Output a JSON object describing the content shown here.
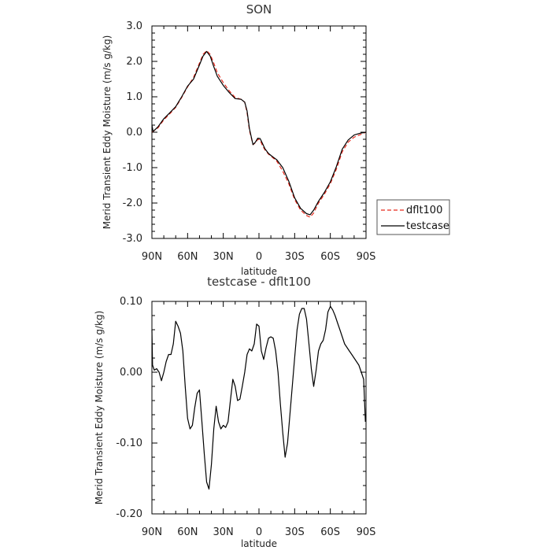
{
  "chart_data": [
    {
      "type": "line",
      "title": "SON",
      "xlabel": "latitude",
      "ylabel": "Merid Transient Eddy Moisture (m/s g/kg)",
      "xlim": [
        90,
        -90
      ],
      "ylim": [
        -3.0,
        3.0
      ],
      "x_tick_values": [
        90,
        60,
        30,
        0,
        -30,
        -60,
        -90
      ],
      "x_tick_labels": [
        "90N",
        "60N",
        "30N",
        "0",
        "30S",
        "60S",
        "90S"
      ],
      "y_tick_values": [
        -3.0,
        -2.0,
        -1.0,
        0.0,
        1.0,
        2.0,
        3.0
      ],
      "y_tick_labels": [
        "-3.0",
        "-2.0",
        "-1.0",
        "0.0",
        "1.0",
        "2.0",
        "3.0"
      ],
      "grid": false,
      "legend_position": "outside-right",
      "series": [
        {
          "name": "dflt100",
          "color": "#e8291c",
          "dash": "dashed",
          "x": [
            90,
            85,
            80,
            75,
            70,
            65,
            60,
            55,
            50,
            47,
            44,
            41,
            38,
            35,
            30,
            25,
            20,
            15,
            12,
            10,
            8,
            5,
            3,
            1,
            -1,
            -3,
            -5,
            -8,
            -11,
            -15,
            -20,
            -25,
            -30,
            -35,
            -40,
            -43,
            -46,
            -50,
            -55,
            -60,
            -65,
            -70,
            -75,
            -80,
            -85,
            -90
          ],
          "y": [
            0.0,
            0.12,
            0.35,
            0.52,
            0.7,
            0.98,
            1.28,
            1.55,
            1.95,
            2.2,
            2.3,
            2.2,
            1.95,
            1.68,
            1.4,
            1.17,
            0.98,
            0.93,
            0.85,
            0.55,
            0.05,
            -0.35,
            -0.3,
            -0.2,
            -0.22,
            -0.38,
            -0.5,
            -0.62,
            -0.7,
            -0.82,
            -1.1,
            -1.45,
            -1.9,
            -2.2,
            -2.35,
            -2.4,
            -2.28,
            -2.0,
            -1.75,
            -1.45,
            -1.05,
            -0.55,
            -0.28,
            -0.14,
            -0.07,
            0.0
          ]
        },
        {
          "name": "testcase",
          "color": "#000000",
          "dash": "solid",
          "x": [
            90,
            89,
            85,
            80,
            75,
            70,
            65,
            60,
            55,
            50,
            47,
            44,
            41,
            38,
            35,
            30,
            25,
            20,
            15,
            12,
            10,
            8,
            5,
            3,
            1,
            -1,
            -3,
            -5,
            -8,
            -11,
            -15,
            -20,
            -25,
            -30,
            -35,
            -40,
            -43,
            -46,
            -50,
            -55,
            -60,
            -65,
            -70,
            -75,
            -80,
            -85,
            -90
          ],
          "y": [
            0.2,
            0.02,
            0.15,
            0.38,
            0.55,
            0.72,
            1.0,
            1.3,
            1.5,
            1.9,
            2.15,
            2.28,
            2.15,
            1.85,
            1.58,
            1.32,
            1.12,
            0.95,
            0.93,
            0.85,
            0.6,
            0.1,
            -0.35,
            -0.28,
            -0.17,
            -0.18,
            -0.32,
            -0.47,
            -0.6,
            -0.68,
            -0.78,
            -1.0,
            -1.38,
            -1.85,
            -2.15,
            -2.3,
            -2.33,
            -2.2,
            -1.95,
            -1.7,
            -1.4,
            -0.98,
            -0.48,
            -0.22,
            -0.08,
            -0.03,
            0.0
          ]
        }
      ]
    },
    {
      "type": "line",
      "title": "testcase - dflt100",
      "xlabel": "latitude",
      "ylabel": "Merid Transient Eddy Moisture (m/s g/kg)",
      "xlim": [
        90,
        -90
      ],
      "ylim": [
        -0.2,
        0.1
      ],
      "x_tick_values": [
        90,
        60,
        30,
        0,
        -30,
        -60,
        -90
      ],
      "x_tick_labels": [
        "90N",
        "60N",
        "30N",
        "0",
        "30S",
        "60S",
        "90S"
      ],
      "y_tick_values": [
        -0.2,
        -0.1,
        0.0,
        0.1
      ],
      "y_tick_labels": [
        "-0.20",
        "-0.10",
        "0.00",
        "0.10"
      ],
      "grid": false,
      "series": [
        {
          "color": "#000000",
          "dash": "solid",
          "x": [
            90,
            89.5,
            88,
            86,
            84,
            82,
            80,
            78,
            76,
            74,
            72,
            70,
            68,
            66,
            64,
            62,
            60,
            58,
            56,
            54,
            52,
            50,
            48,
            46,
            44,
            42,
            40,
            38,
            36,
            34,
            32,
            30,
            28,
            26,
            24,
            22,
            20,
            18,
            16,
            14,
            12,
            10,
            8,
            6,
            4,
            2,
            0,
            -2,
            -4,
            -6,
            -8,
            -10,
            -12,
            -14,
            -16,
            -18,
            -20,
            -22,
            -24,
            -26,
            -28,
            -30,
            -32,
            -34,
            -36,
            -38,
            -40,
            -42,
            -44,
            -46,
            -48,
            -50,
            -52,
            -54,
            -56,
            -58,
            -60,
            -62,
            -64,
            -66,
            -68,
            -70,
            -72,
            -74,
            -76,
            -78,
            -80,
            -82,
            -84,
            -86,
            -88,
            -89.5
          ],
          "y": [
            0.06,
            0.01,
            0.003,
            0.005,
            0.0,
            -0.012,
            0.0,
            0.015,
            0.025,
            0.025,
            0.04,
            0.072,
            0.065,
            0.055,
            0.03,
            -0.02,
            -0.065,
            -0.08,
            -0.075,
            -0.05,
            -0.03,
            -0.025,
            -0.07,
            -0.115,
            -0.155,
            -0.165,
            -0.13,
            -0.08,
            -0.048,
            -0.07,
            -0.08,
            -0.075,
            -0.078,
            -0.07,
            -0.04,
            -0.01,
            -0.02,
            -0.04,
            -0.038,
            -0.02,
            0.0,
            0.025,
            0.033,
            0.03,
            0.04,
            0.068,
            0.065,
            0.03,
            0.018,
            0.035,
            0.048,
            0.05,
            0.048,
            0.03,
            0.0,
            -0.045,
            -0.085,
            -0.12,
            -0.1,
            -0.06,
            -0.02,
            0.02,
            0.06,
            0.082,
            0.09,
            0.09,
            0.075,
            0.04,
            0.005,
            -0.02,
            0.002,
            0.03,
            0.04,
            0.045,
            0.06,
            0.085,
            0.093,
            0.088,
            0.08,
            0.07,
            0.06,
            0.05,
            0.04,
            0.035,
            0.03,
            0.025,
            0.02,
            0.015,
            0.01,
            0.0,
            -0.01,
            -0.07
          ]
        }
      ]
    }
  ]
}
